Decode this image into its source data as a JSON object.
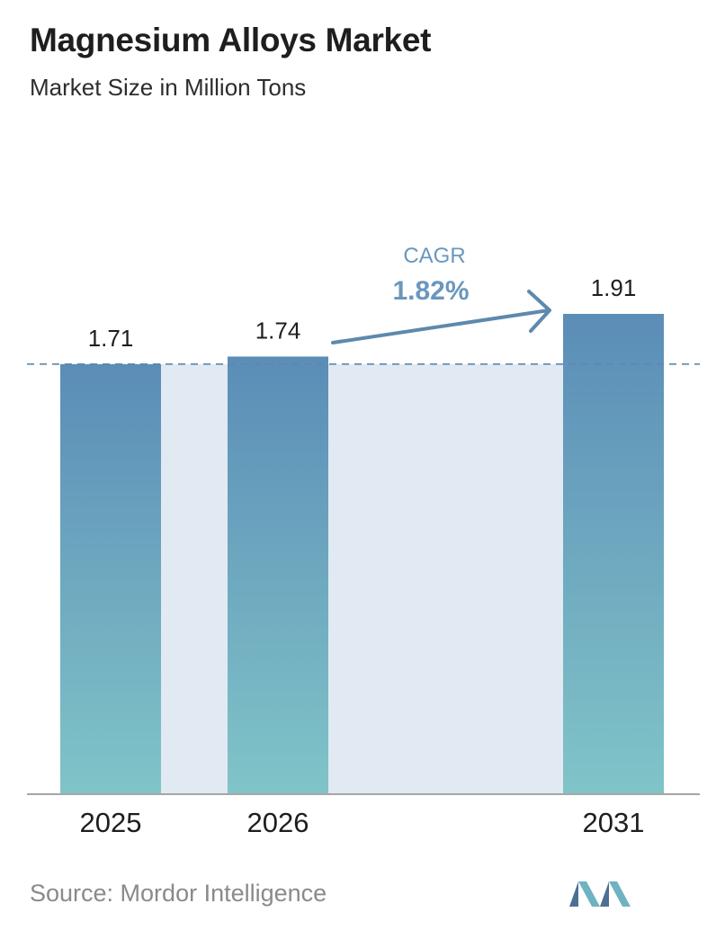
{
  "header": {
    "title": "Magnesium Alloys Market",
    "subtitle": "Market Size in Million Tons"
  },
  "cagr": {
    "label": "CAGR",
    "value": "1.82%"
  },
  "footer": {
    "source": "Source: Mordor Intelligence",
    "logo_icon": "mordor-intelligence-logo-icon"
  },
  "colors": {
    "bar_top": "#5b8db7",
    "bar_bottom": "#80c4c8",
    "band": "#e1e9f2",
    "cagr_text": "#6a97bd",
    "dashed_line": "#5d89ad",
    "axis": "#a6a6a6"
  },
  "chart_data": {
    "type": "bar",
    "title": "Magnesium Alloys Market",
    "subtitle": "Market Size in Million Tons",
    "categories": [
      "2025",
      "2026",
      "2031"
    ],
    "values": [
      1.71,
      1.74,
      1.91
    ],
    "value_labels": [
      "1.71",
      "1.74",
      "1.91"
    ],
    "ylim": [
      0,
      2.1
    ],
    "grid": false,
    "legend": "none",
    "reference_line": {
      "value": 1.71,
      "style": "dashed"
    },
    "annotation": {
      "label": "CAGR",
      "value": "1.82%",
      "from": "2026",
      "to": "2031"
    }
  }
}
